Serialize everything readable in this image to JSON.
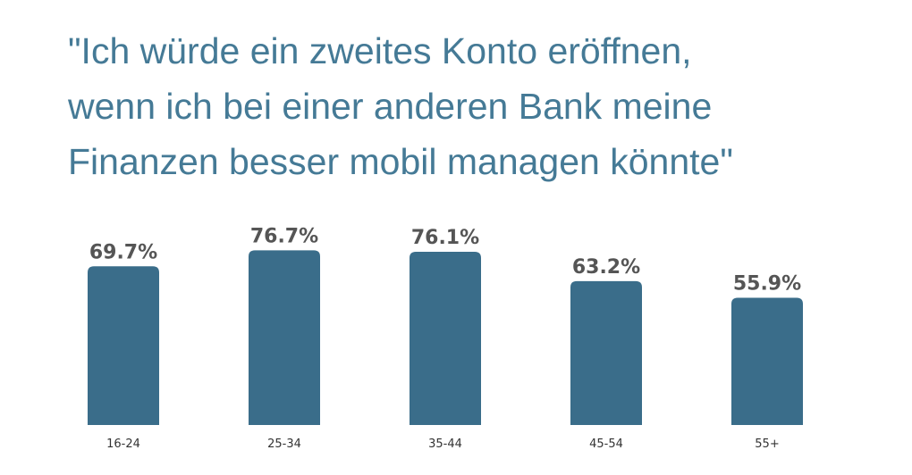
{
  "title_lines": [
    "\"Ich würde ein zweites Konto eröffnen,",
    "wenn ich bei einer anderen Bank meine",
    "Finanzen besser mobil managen könnte\""
  ],
  "colors": {
    "title": "#457a96",
    "bar": "#3a6d8a",
    "value_label": "#555555",
    "category_label": "#333333"
  },
  "chart_data": {
    "type": "bar",
    "title": "\"Ich würde ein zweites Konto eröffnen, wenn ich bei einer anderen Bank meine Finanzen besser mobil managen könnte\"",
    "categories": [
      "16-24",
      "25-34",
      "35-44",
      "45-54",
      "55+"
    ],
    "values": [
      69.7,
      76.7,
      76.1,
      63.2,
      55.9
    ],
    "value_labels": [
      "69.7%",
      "76.7%",
      "76.1%",
      "63.2%",
      "55.9%"
    ],
    "xlabel": "",
    "ylabel": "",
    "ylim": [
      0,
      100
    ],
    "grid": false,
    "legend": "none"
  }
}
